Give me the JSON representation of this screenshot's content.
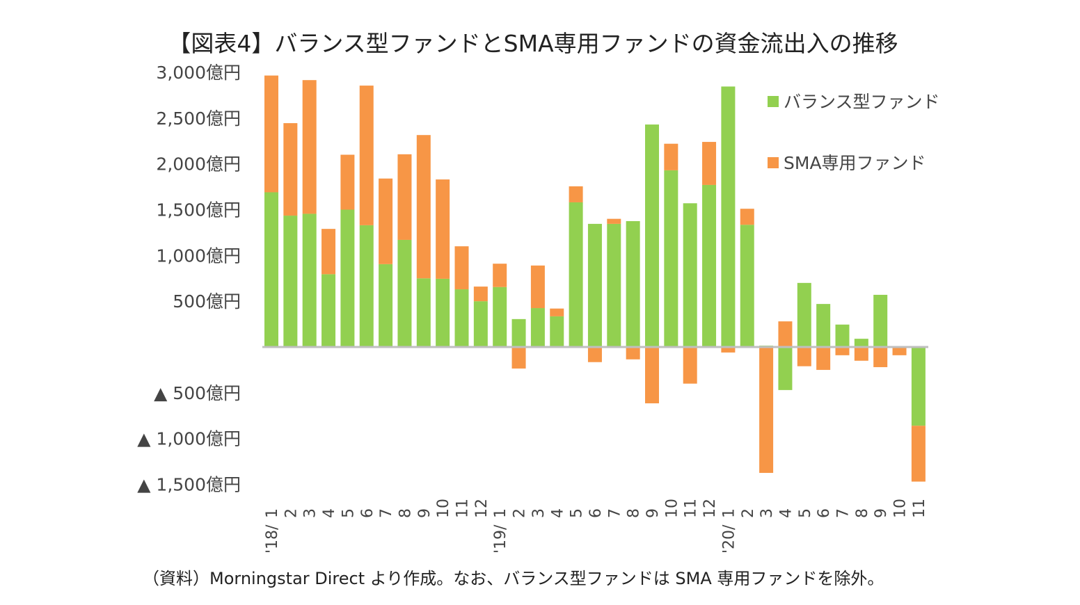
{
  "chart_data": {
    "type": "bar",
    "stacked": true,
    "title": "【図表4】バランス型ファンドとSMA専用ファンドの資金流出入の推移",
    "source_note": "（資料）Morningstar Direct より作成。なお、バランス型ファンドは SMA 専用ファンドを除外。",
    "categories": [
      "1",
      "2",
      "3",
      "4",
      "5",
      "6",
      "7",
      "8",
      "9",
      "10",
      "11",
      "12",
      "1",
      "2",
      "3",
      "4",
      "5",
      "6",
      "7",
      "8",
      "9",
      "10",
      "11",
      "12",
      "1",
      "2",
      "3",
      "4",
      "5",
      "6",
      "7",
      "8",
      "9",
      "10",
      "11"
    ],
    "year_labels": [
      {
        "label": "'18/",
        "index": 0
      },
      {
        "label": "'19/",
        "index": 12
      },
      {
        "label": "'20/",
        "index": 24
      }
    ],
    "ylim": [
      -1500,
      3000
    ],
    "y_ticks": [
      {
        "value": 3000,
        "label": "3,000億円"
      },
      {
        "value": 2500,
        "label": "2,500億円"
      },
      {
        "value": 2000,
        "label": "2,000億円"
      },
      {
        "value": 1500,
        "label": "1,500億円"
      },
      {
        "value": 1000,
        "label": "1,000億円"
      },
      {
        "value": 500,
        "label": "500億円"
      },
      {
        "value": -500,
        "label": "▲ 500億円"
      },
      {
        "value": -1000,
        "label": "▲ 1,000億円"
      },
      {
        "value": -1500,
        "label": "▲ 1,500億円"
      }
    ],
    "grid": false,
    "legend_position": "top-right",
    "series": [
      {
        "name": "バランス型ファンド",
        "color": "#92d050",
        "values": [
          1690,
          1435,
          1455,
          795,
          1500,
          1330,
          905,
          1170,
          750,
          745,
          630,
          500,
          655,
          305,
          425,
          335,
          1580,
          1345,
          1345,
          1375,
          2430,
          1930,
          1570,
          1770,
          2845,
          1335,
          15,
          -470,
          700,
          470,
          245,
          90,
          570,
          0,
          -860
        ]
      },
      {
        "name": "SMA専用ファンド",
        "color": "#f79646",
        "values": [
          1275,
          1010,
          1460,
          495,
          600,
          1525,
          935,
          935,
          1565,
          1085,
          470,
          160,
          255,
          -235,
          465,
          85,
          175,
          -165,
          55,
          -135,
          -615,
          290,
          -400,
          470,
          -60,
          175,
          -1375,
          280,
          -210,
          -250,
          -90,
          -150,
          -220,
          -90,
          -610
        ]
      }
    ]
  }
}
